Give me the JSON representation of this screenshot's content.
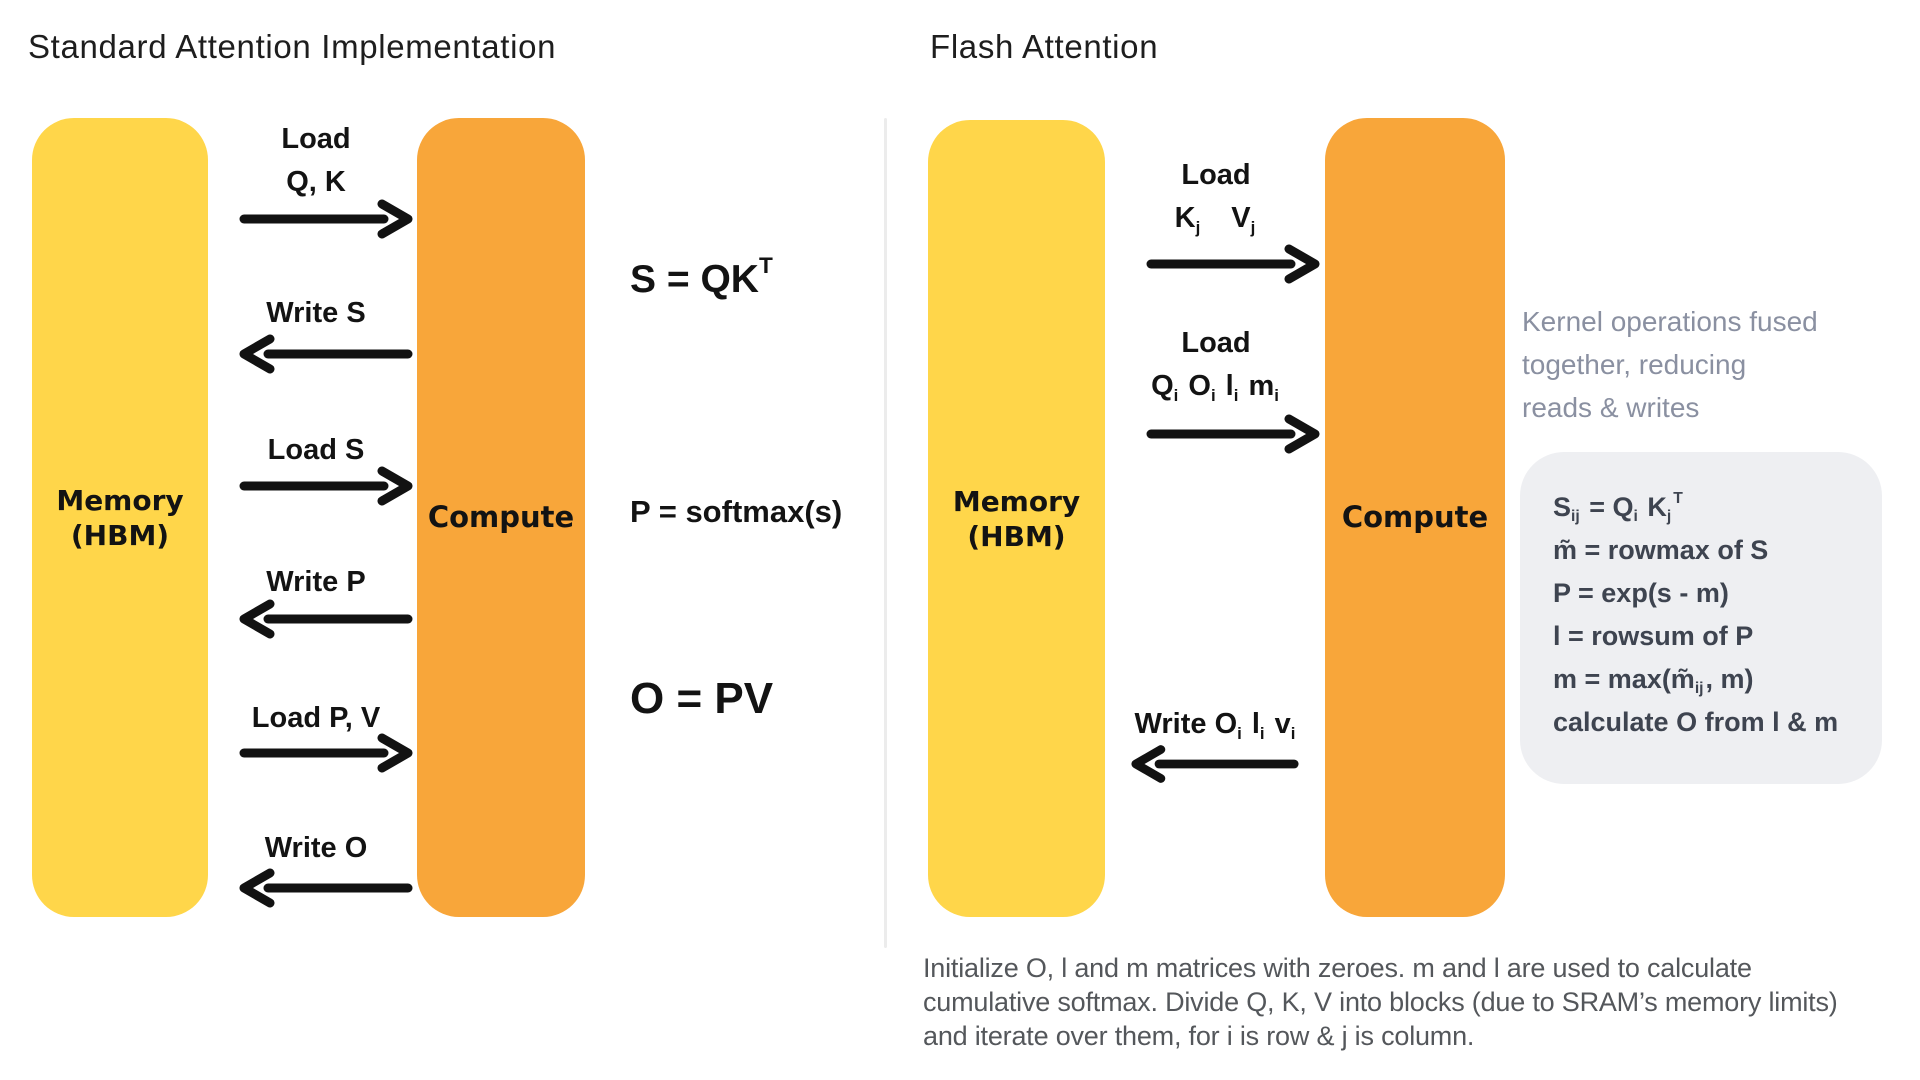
{
  "left": {
    "title": "Standard Attention Implementation",
    "memory": {
      "line1": "Memory",
      "line2": "(HBM)"
    },
    "compute_label": "Compute",
    "flows": [
      {
        "line1": "Load",
        "line2": "Q, K",
        "direction": "right"
      },
      {
        "line1": "Write S",
        "direction": "left"
      },
      {
        "line1": "Load S",
        "direction": "right"
      },
      {
        "line1": "Write P",
        "direction": "left"
      },
      {
        "line1": "Load P, V",
        "direction": "right"
      },
      {
        "line1": "Write O",
        "direction": "left"
      }
    ],
    "formulas": {
      "s": "S = QK^{T}",
      "p": "P = softmax(s)",
      "o": "O = PV"
    }
  },
  "right": {
    "title": "Flash Attention",
    "memory": {
      "line1": "Memory",
      "line2": "(HBM)"
    },
    "compute_label": "Compute",
    "flows": [
      {
        "line1": "Load",
        "line2": "K_{j} V_{j}",
        "direction": "right"
      },
      {
        "line1": "Load",
        "line2": "Q_{i} O_{i} l_{i} m_{i}",
        "direction": "right"
      },
      {
        "line1": "Write O_{i} l_{i} v_{i}",
        "direction": "left"
      }
    ],
    "note": {
      "line1": "Kernel operations fused",
      "line2": "together, reducing",
      "line3": "reads & writes"
    },
    "box_formulas": {
      "f1": "S_{ij} = Q_{i} K_{j}^{T}",
      "f2": "m̃ = rowmax of S",
      "f3": "P = exp(s - m)",
      "f4": "l = rowsum of P",
      "f5": "m = max(m̃_{ij}, m)",
      "f6": "calculate O from l & m"
    },
    "footnote": {
      "line1": "Initialize O, l and m matrices with zeroes. m and l are used to calculate",
      "line2": "cumulative softmax. Divide Q, K, V into blocks (due to SRAM’s memory limits)",
      "line3": "and iterate over them, for i is row & j is column."
    }
  },
  "colors": {
    "memory_yellow": "#FFD64A",
    "compute_orange": "#F8A63A",
    "arrow_black": "#121212",
    "note_gray": "#8A90A1",
    "box_bg": "#EEEFF2",
    "box_text": "#3E4450",
    "divider_gray": "#ECECEC",
    "title_ink": "#1E1E1E",
    "label_ink": "#131313",
    "footnote_ink": "#54575B"
  }
}
